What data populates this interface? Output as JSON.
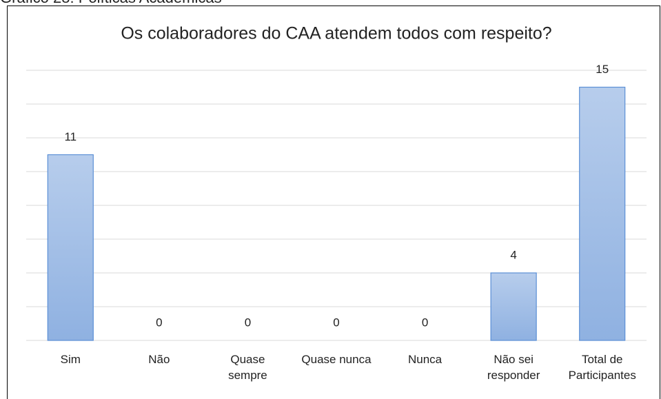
{
  "caption": "Gráfico 28: Políticas Acadêmicas",
  "chart_data": {
    "type": "bar",
    "title": "Os colaboradores do CAA atendem todos com respeito?",
    "categories": [
      "Sim",
      "Não",
      "Quase sempre",
      "Quase nunca",
      "Nunca",
      "Não sei responder",
      "Total de Participantes"
    ],
    "values": [
      11,
      0,
      0,
      0,
      0,
      4,
      15
    ],
    "color": "#9dbce6",
    "ylim": [
      0,
      16
    ],
    "yticks": [
      0,
      2,
      4,
      6,
      8,
      10,
      12,
      14,
      16
    ],
    "grid": true
  }
}
